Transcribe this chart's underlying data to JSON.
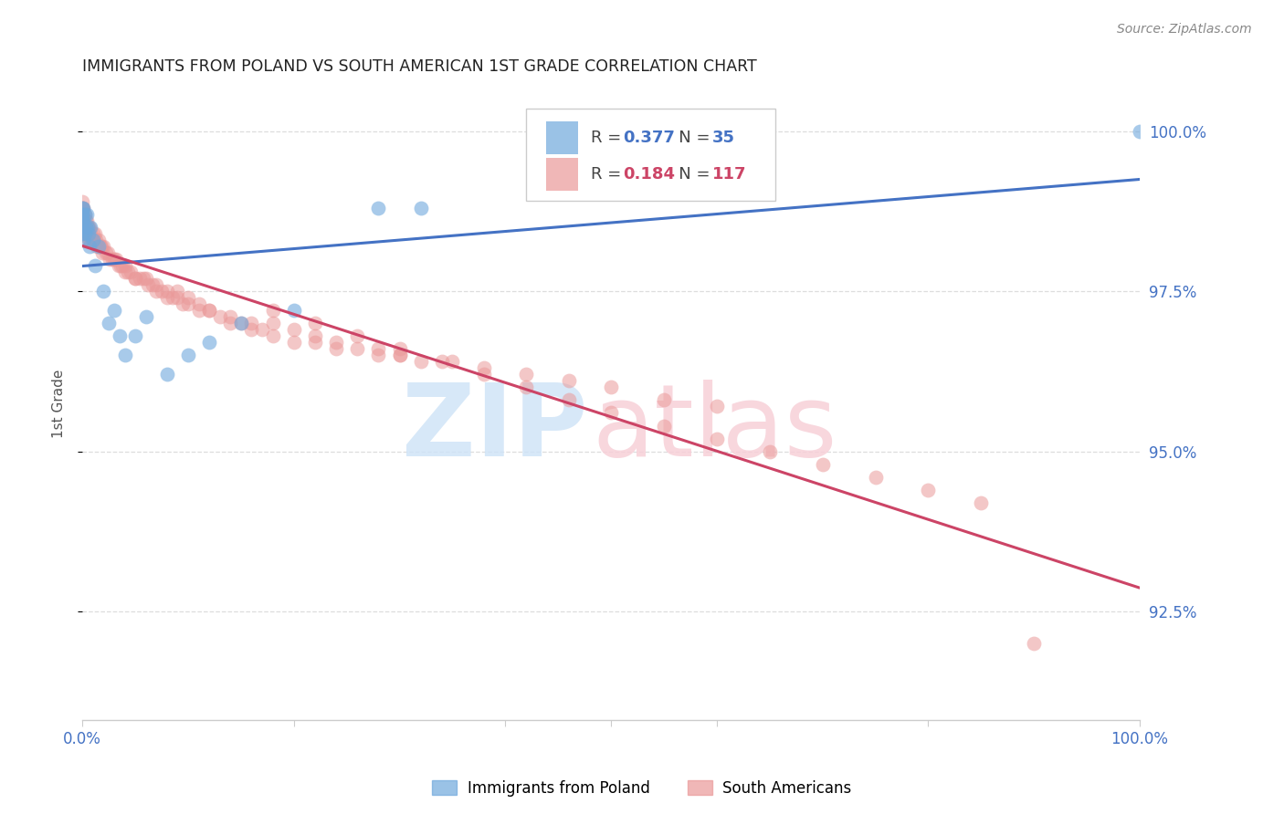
{
  "title": "IMMIGRANTS FROM POLAND VS SOUTH AMERICAN 1ST GRADE CORRELATION CHART",
  "source": "Source: ZipAtlas.com",
  "ylabel": "1st Grade",
  "xmin": 0.0,
  "xmax": 1.0,
  "ymin": 0.908,
  "ymax": 1.007,
  "yticks": [
    0.925,
    0.95,
    0.975,
    1.0
  ],
  "ytick_labels": [
    "92.5%",
    "95.0%",
    "97.5%",
    "100.0%"
  ],
  "poland_color": "#6fa8dc",
  "sa_color": "#ea9999",
  "poland_line_color": "#4472c4",
  "sa_line_color": "#cc4466",
  "poland_R": 0.377,
  "poland_N": 35,
  "sa_R": 0.184,
  "sa_N": 117,
  "poland_x": [
    0.0,
    0.0,
    0.0,
    0.0,
    0.0,
    0.0,
    0.001,
    0.001,
    0.001,
    0.002,
    0.002,
    0.003,
    0.004,
    0.005,
    0.006,
    0.007,
    0.008,
    0.01,
    0.012,
    0.015,
    0.02,
    0.025,
    0.03,
    0.035,
    0.04,
    0.05,
    0.06,
    0.08,
    0.1,
    0.12,
    0.15,
    0.2,
    0.28,
    0.32,
    1.0
  ],
  "poland_y": [
    0.988,
    0.987,
    0.987,
    0.986,
    0.985,
    0.984,
    0.988,
    0.986,
    0.983,
    0.987,
    0.984,
    0.985,
    0.987,
    0.985,
    0.984,
    0.982,
    0.985,
    0.983,
    0.979,
    0.982,
    0.975,
    0.97,
    0.972,
    0.968,
    0.965,
    0.968,
    0.971,
    0.962,
    0.965,
    0.967,
    0.97,
    0.972,
    0.988,
    0.988,
    1.0
  ],
  "sa_x": [
    0.0,
    0.0,
    0.0,
    0.0,
    0.0,
    0.0,
    0.0,
    0.0,
    0.0,
    0.0,
    0.001,
    0.001,
    0.002,
    0.002,
    0.003,
    0.003,
    0.004,
    0.004,
    0.005,
    0.005,
    0.006,
    0.006,
    0.007,
    0.007,
    0.008,
    0.009,
    0.01,
    0.011,
    0.012,
    0.013,
    0.014,
    0.015,
    0.016,
    0.017,
    0.018,
    0.019,
    0.02,
    0.022,
    0.024,
    0.026,
    0.028,
    0.03,
    0.032,
    0.034,
    0.036,
    0.038,
    0.04,
    0.043,
    0.046,
    0.05,
    0.054,
    0.058,
    0.062,
    0.066,
    0.07,
    0.075,
    0.08,
    0.085,
    0.09,
    0.095,
    0.1,
    0.11,
    0.12,
    0.13,
    0.14,
    0.15,
    0.16,
    0.17,
    0.18,
    0.2,
    0.22,
    0.24,
    0.26,
    0.28,
    0.3,
    0.32,
    0.04,
    0.05,
    0.06,
    0.07,
    0.08,
    0.09,
    0.1,
    0.11,
    0.12,
    0.14,
    0.16,
    0.18,
    0.2,
    0.22,
    0.24,
    0.28,
    0.3,
    0.35,
    0.38,
    0.42,
    0.46,
    0.5,
    0.55,
    0.6,
    0.18,
    0.22,
    0.26,
    0.3,
    0.34,
    0.38,
    0.42,
    0.46,
    0.5,
    0.55,
    0.6,
    0.65,
    0.7,
    0.75,
    0.8,
    0.85,
    0.9
  ],
  "sa_y": [
    0.989,
    0.988,
    0.988,
    0.987,
    0.987,
    0.986,
    0.986,
    0.985,
    0.985,
    0.984,
    0.988,
    0.986,
    0.987,
    0.985,
    0.986,
    0.984,
    0.986,
    0.984,
    0.985,
    0.984,
    0.985,
    0.983,
    0.985,
    0.983,
    0.984,
    0.983,
    0.984,
    0.983,
    0.984,
    0.983,
    0.982,
    0.983,
    0.982,
    0.982,
    0.982,
    0.981,
    0.982,
    0.981,
    0.981,
    0.98,
    0.98,
    0.98,
    0.98,
    0.979,
    0.979,
    0.979,
    0.979,
    0.978,
    0.978,
    0.977,
    0.977,
    0.977,
    0.976,
    0.976,
    0.975,
    0.975,
    0.974,
    0.974,
    0.974,
    0.973,
    0.973,
    0.972,
    0.972,
    0.971,
    0.97,
    0.97,
    0.969,
    0.969,
    0.968,
    0.967,
    0.967,
    0.966,
    0.966,
    0.965,
    0.965,
    0.964,
    0.978,
    0.977,
    0.977,
    0.976,
    0.975,
    0.975,
    0.974,
    0.973,
    0.972,
    0.971,
    0.97,
    0.97,
    0.969,
    0.968,
    0.967,
    0.966,
    0.965,
    0.964,
    0.963,
    0.962,
    0.961,
    0.96,
    0.958,
    0.957,
    0.972,
    0.97,
    0.968,
    0.966,
    0.964,
    0.962,
    0.96,
    0.958,
    0.956,
    0.954,
    0.952,
    0.95,
    0.948,
    0.946,
    0.944,
    0.942,
    0.92
  ],
  "background_color": "#ffffff",
  "grid_color": "#dddddd",
  "title_color": "#222222",
  "axis_label_color": "#555555",
  "tick_color": "#4472c4",
  "watermark_zip_color": "#d0e4f7",
  "watermark_atlas_color": "#f7d0d8"
}
